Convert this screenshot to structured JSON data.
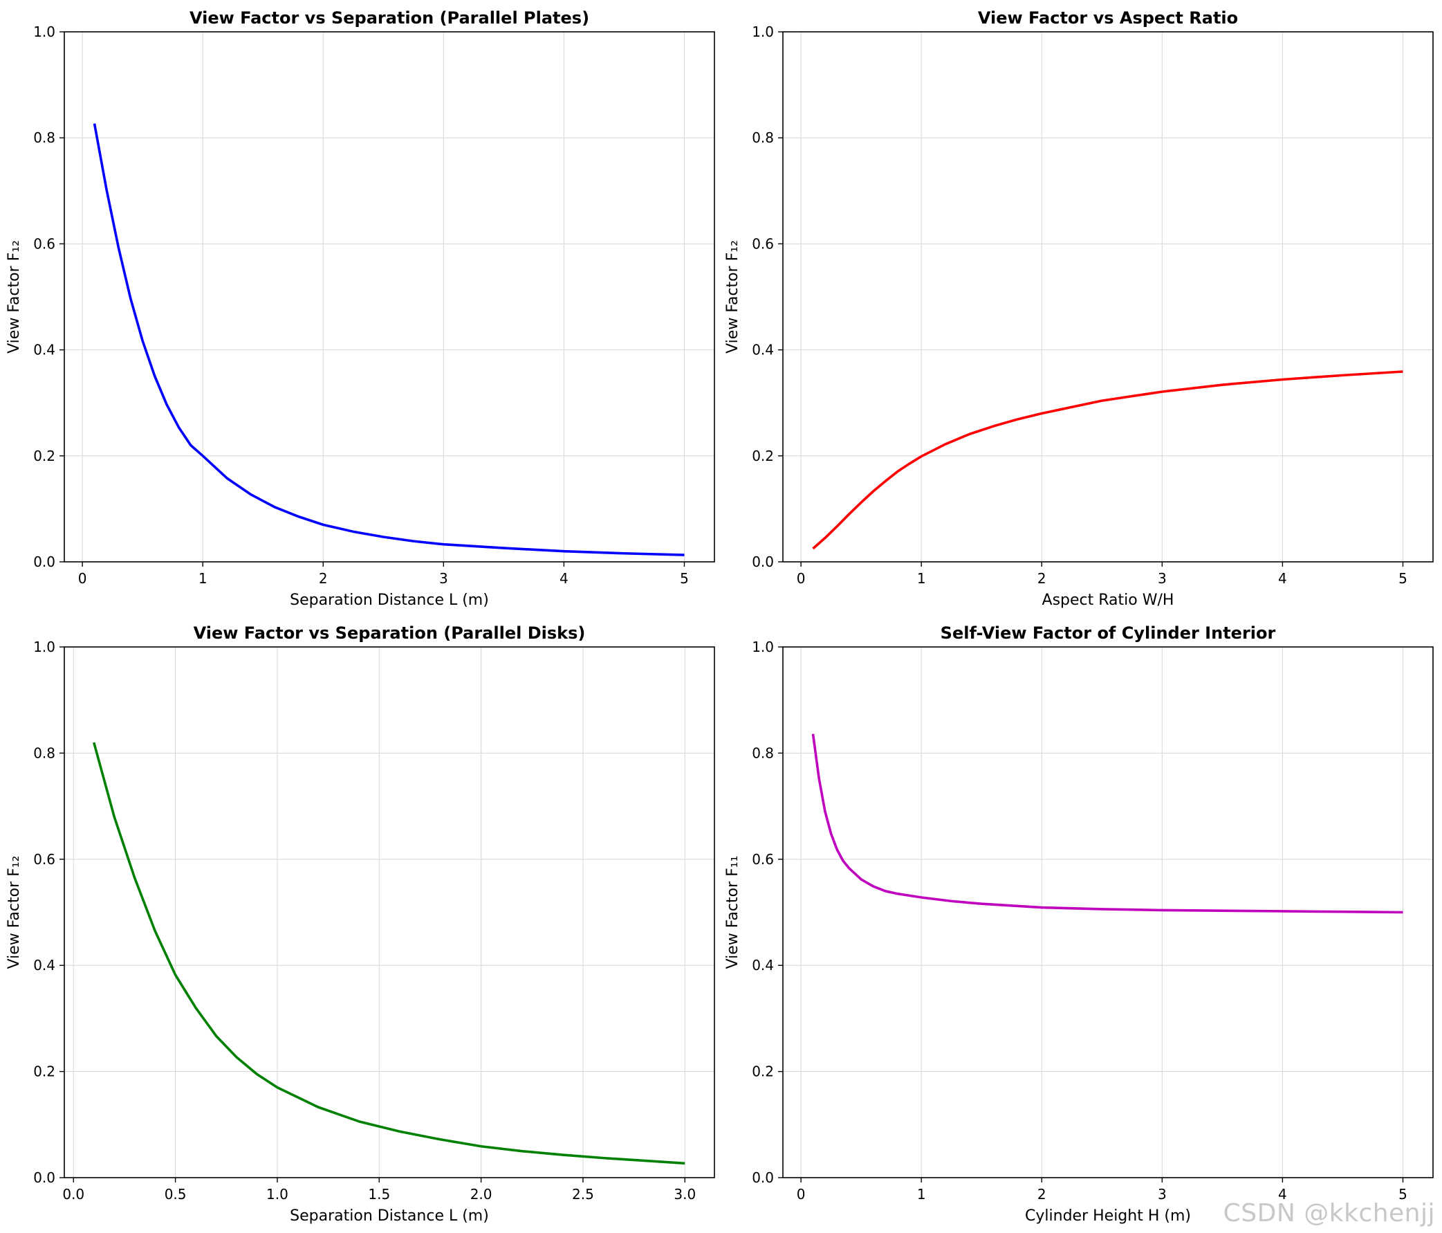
{
  "watermark": "CSDN @kkchenjj",
  "chart_data": [
    {
      "type": "line",
      "title": "View Factor vs Separation (Parallel Plates)",
      "xlabel": "Separation Distance L (m)",
      "ylabel": "View Factor F₁₂",
      "xlim": [
        -0.15,
        5.25
      ],
      "ylim": [
        0.0,
        1.0
      ],
      "xticks": [
        0,
        1,
        2,
        3,
        4,
        5
      ],
      "xtick_labels": [
        "0",
        "1",
        "2",
        "3",
        "4",
        "5"
      ],
      "yticks": [
        0.0,
        0.2,
        0.4,
        0.6,
        0.8,
        1.0
      ],
      "ytick_labels": [
        "0.0",
        "0.2",
        "0.4",
        "0.6",
        "0.8",
        "1.0"
      ],
      "grid": true,
      "color": "#0000ff",
      "series": [
        {
          "x": [
            0.1,
            0.2,
            0.3,
            0.4,
            0.5,
            0.6,
            0.7,
            0.8,
            0.9,
            1.0,
            1.2,
            1.4,
            1.6,
            1.8,
            2.0,
            2.25,
            2.5,
            2.75,
            3.0,
            3.5,
            4.0,
            4.5,
            5.0
          ],
          "y": [
            0.827,
            0.703,
            0.593,
            0.497,
            0.417,
            0.351,
            0.297,
            0.254,
            0.22,
            0.2,
            0.158,
            0.127,
            0.103,
            0.085,
            0.07,
            0.057,
            0.047,
            0.039,
            0.033,
            0.026,
            0.02,
            0.016,
            0.013
          ]
        }
      ]
    },
    {
      "type": "line",
      "title": "View Factor vs Aspect Ratio",
      "xlabel": "Aspect Ratio W/H",
      "ylabel": "View Factor F₁₂",
      "xlim": [
        -0.15,
        5.25
      ],
      "ylim": [
        0.0,
        1.0
      ],
      "xticks": [
        0,
        1,
        2,
        3,
        4,
        5
      ],
      "xtick_labels": [
        "0",
        "1",
        "2",
        "3",
        "4",
        "5"
      ],
      "yticks": [
        0.0,
        0.2,
        0.4,
        0.6,
        0.8,
        1.0
      ],
      "ytick_labels": [
        "0.0",
        "0.2",
        "0.4",
        "0.6",
        "0.8",
        "1.0"
      ],
      "grid": true,
      "color": "#ff0000",
      "series": [
        {
          "x": [
            0.1,
            0.2,
            0.3,
            0.4,
            0.5,
            0.6,
            0.7,
            0.8,
            0.9,
            1.0,
            1.2,
            1.4,
            1.6,
            1.8,
            2.0,
            2.5,
            3.0,
            3.5,
            4.0,
            4.5,
            5.0
          ],
          "y": [
            0.025,
            0.045,
            0.067,
            0.09,
            0.112,
            0.133,
            0.152,
            0.17,
            0.185,
            0.199,
            0.222,
            0.241,
            0.256,
            0.269,
            0.28,
            0.304,
            0.321,
            0.334,
            0.344,
            0.352,
            0.359
          ]
        }
      ]
    },
    {
      "type": "line",
      "title": "View Factor vs Separation (Parallel Disks)",
      "xlabel": "Separation Distance L (m)",
      "ylabel": "View Factor F₁₂",
      "xlim": [
        -0.045,
        3.145
      ],
      "ylim": [
        0.0,
        1.0
      ],
      "xticks": [
        0.0,
        0.5,
        1.0,
        1.5,
        2.0,
        2.5,
        3.0
      ],
      "xtick_labels": [
        "0.0",
        "0.5",
        "1.0",
        "1.5",
        "2.0",
        "2.5",
        "3.0"
      ],
      "yticks": [
        0.0,
        0.2,
        0.4,
        0.6,
        0.8,
        1.0
      ],
      "ytick_labels": [
        "0.0",
        "0.2",
        "0.4",
        "0.6",
        "0.8",
        "1.0"
      ],
      "grid": true,
      "color": "#008000",
      "series": [
        {
          "x": [
            0.1,
            0.2,
            0.3,
            0.4,
            0.5,
            0.6,
            0.7,
            0.8,
            0.9,
            1.0,
            1.2,
            1.4,
            1.6,
            1.8,
            2.0,
            2.2,
            2.4,
            2.6,
            2.8,
            3.0
          ],
          "y": [
            0.82,
            0.68,
            0.565,
            0.465,
            0.382,
            0.32,
            0.267,
            0.227,
            0.195,
            0.17,
            0.133,
            0.106,
            0.087,
            0.072,
            0.059,
            0.05,
            0.043,
            0.037,
            0.032,
            0.027
          ]
        }
      ]
    },
    {
      "type": "line",
      "title": "Self-View Factor of Cylinder Interior",
      "xlabel": "Cylinder Height H (m)",
      "ylabel": "View Factor F₁₁",
      "xlim": [
        -0.15,
        5.25
      ],
      "ylim": [
        0.0,
        1.0
      ],
      "xticks": [
        0,
        1,
        2,
        3,
        4,
        5
      ],
      "xtick_labels": [
        "0",
        "1",
        "2",
        "3",
        "4",
        "5"
      ],
      "yticks": [
        0.0,
        0.2,
        0.4,
        0.6,
        0.8,
        1.0
      ],
      "ytick_labels": [
        "0.0",
        "0.2",
        "0.4",
        "0.6",
        "0.8",
        "1.0"
      ],
      "grid": true,
      "color": "#bf00bf",
      "series": [
        {
          "x": [
            0.1,
            0.15,
            0.2,
            0.25,
            0.3,
            0.35,
            0.4,
            0.5,
            0.6,
            0.7,
            0.8,
            1.0,
            1.25,
            1.5,
            2.0,
            2.5,
            3.0,
            3.5,
            4.0,
            4.5,
            5.0
          ],
          "y": [
            0.836,
            0.752,
            0.69,
            0.648,
            0.618,
            0.597,
            0.583,
            0.562,
            0.549,
            0.54,
            0.535,
            0.528,
            0.521,
            0.516,
            0.509,
            0.506,
            0.504,
            0.503,
            0.502,
            0.501,
            0.5
          ]
        }
      ]
    }
  ]
}
